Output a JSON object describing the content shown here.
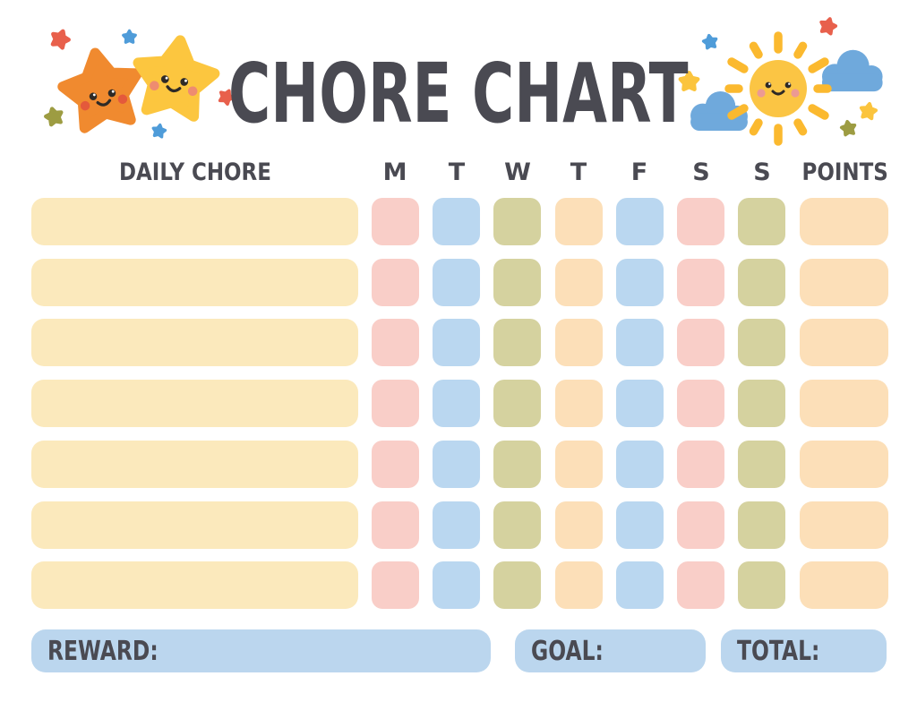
{
  "title": "CHORE CHART",
  "header": {
    "chore": "DAILY CHORE",
    "days": [
      "M",
      "T",
      "W",
      "T",
      "F",
      "S",
      "S"
    ],
    "points": "POINTS"
  },
  "grid": {
    "row_count": 7,
    "chore_color": "cream",
    "day_color_pattern": [
      "pink",
      "blue",
      "olive",
      "peach",
      "blue",
      "pink",
      "olive"
    ],
    "points_color": "peach"
  },
  "footer": {
    "reward": "REWARD:",
    "goal": "GOAL:",
    "total": "TOTAL:"
  },
  "decorations": {
    "left": [
      "orange-star-icon",
      "yellow-star-icon",
      "mini-star-icon x5"
    ],
    "right": [
      "sun-icon",
      "cloud-icon x2",
      "mini-star-icon x5"
    ]
  },
  "colors": {
    "text": "#4A4A52",
    "cream": "#FBE9BC",
    "pink": "#F9CEC8",
    "blue": "#BAD7F0",
    "olive": "#D5D29F",
    "peach": "#FCDFB8",
    "footer_bar": "#BBD6EE",
    "orange_star": "#F08A2F",
    "orange_star_cheek": "#E4593B",
    "yellow_star": "#FCC63F",
    "yellow_star_cheek": "#EE8C70",
    "face": "#2E2A26",
    "sun": "#FBC544",
    "sun_ray": "#FBB92F",
    "sun_cheek": "#EC9A93",
    "cloud": "#6FA9DC",
    "mini_red": "#E8604C",
    "mini_blue": "#4F9CD9",
    "mini_olive": "#9D9C42",
    "mini_yellow": "#FBC43D"
  }
}
